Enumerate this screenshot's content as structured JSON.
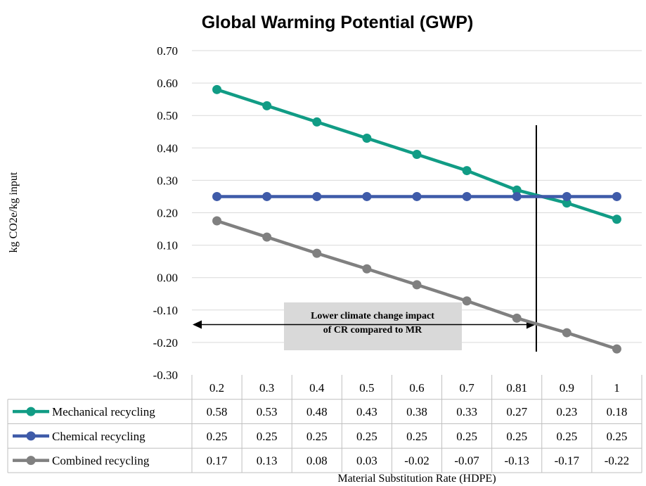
{
  "chart_data": {
    "type": "line",
    "title": "Global Warming Potential (GWP)",
    "ylabel": "kg CO2e/kg input",
    "xlabel": "Material Substitution Rate (HDPE)",
    "ylim": [
      -0.3,
      0.7
    ],
    "y_ticks": [
      "0.70",
      "0.60",
      "0.50",
      "0.40",
      "0.30",
      "0.20",
      "0.10",
      "0.00",
      "-0.10",
      "-0.20",
      "-0.30"
    ],
    "categories": [
      "0.2",
      "0.3",
      "0.4",
      "0.5",
      "0.6",
      "0.7",
      "0.81",
      "0.9",
      "1"
    ],
    "grid": "horizontal",
    "series": [
      {
        "name": "Mechanical recycling",
        "color": "#119C85",
        "values": [
          0.58,
          0.53,
          0.48,
          0.43,
          0.38,
          0.33,
          0.27,
          0.23,
          0.18
        ],
        "labels": [
          "0.58",
          "0.53",
          "0.48",
          "0.43",
          "0.38",
          "0.33",
          "0.27",
          "0.23",
          "0.18"
        ]
      },
      {
        "name": "Chemical recycling",
        "color": "#3F5BA9",
        "values": [
          0.25,
          0.25,
          0.25,
          0.25,
          0.25,
          0.25,
          0.25,
          0.25,
          0.25
        ],
        "labels": [
          "0.25",
          "0.25",
          "0.25",
          "0.25",
          "0.25",
          "0.25",
          "0.25",
          "0.25",
          "0.25"
        ]
      },
      {
        "name": "Combined recycling",
        "color": "#808080",
        "values": [
          0.175,
          0.125,
          0.075,
          0.027,
          -0.022,
          -0.072,
          -0.125,
          -0.17,
          -0.22
        ],
        "labels": [
          "0.17",
          "0.13",
          "0.08",
          "0.03",
          "-0.02",
          "-0.07",
          "-0.13",
          "-0.17",
          "-0.22"
        ]
      }
    ],
    "annotation": {
      "line1": "Lower climate change impact",
      "line2": "of CR compared to MR",
      "breakeven_x": 0.81,
      "arrow_y": -0.145
    }
  }
}
